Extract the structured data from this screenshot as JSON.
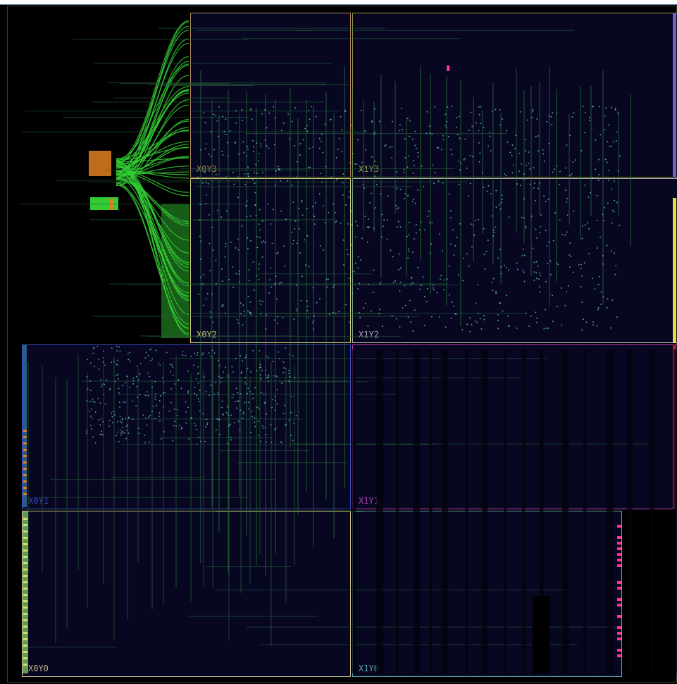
{
  "app": {
    "view": "Device"
  },
  "regions": [
    {
      "id": "X0Y3",
      "label": "X0Y3",
      "color": "#b58a5a"
    },
    {
      "id": "X1Y3",
      "label": "X1Y3",
      "color": "#9a9a4a"
    },
    {
      "id": "X0Y2",
      "label": "X0Y2",
      "color": "#d6d67a"
    },
    {
      "id": "X1Y2",
      "label": "X1Y2",
      "color": "#b8b8b8"
    },
    {
      "id": "X0Y1",
      "label": "X0Y1",
      "color": "#3a4fc0"
    },
    {
      "id": "X1Y1",
      "label": "X1Y1",
      "color": "#c040c0"
    },
    {
      "id": "X0Y0",
      "label": "X0Y0",
      "color": "#d0c090"
    },
    {
      "id": "X1Y0",
      "label": "X1Y0",
      "color": "#60b0b0"
    }
  ],
  "colors": {
    "background": "#000000",
    "region_fill": "#070722",
    "net_green": "#33cc33",
    "io_orange": "#e08020",
    "clock_purple": "#8060c0",
    "clock_yellow": "#e0e040",
    "clock_red": "#c02030",
    "marker_pink": "#ff3399"
  }
}
